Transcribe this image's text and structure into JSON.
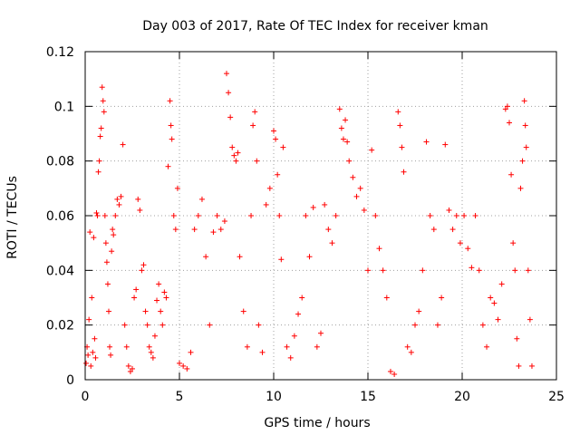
{
  "chart_data": {
    "type": "scatter",
    "title": "Day 003 of 2017, Rate Of TEC Index for receiver kman",
    "xlabel": "GPS time / hours",
    "ylabel": "ROTI / TECUs",
    "xlim": [
      0,
      25
    ],
    "ylim": [
      0,
      0.12
    ],
    "x_ticks": [
      "0",
      "5",
      "10",
      "15",
      "20",
      "25"
    ],
    "y_ticks": [
      "0",
      "0.02",
      "0.04",
      "0.06",
      "0.08",
      "0.1",
      "0.12"
    ],
    "grid": true,
    "marker": "plus",
    "color": "#ff0000",
    "series": [
      {
        "points": [
          [
            0.05,
            0.006
          ],
          [
            0.1,
            0.012
          ],
          [
            0.15,
            0.009
          ],
          [
            0.2,
            0.022
          ],
          [
            0.25,
            0.054
          ],
          [
            0.3,
            0.005
          ],
          [
            0.35,
            0.03
          ],
          [
            0.4,
            0.01
          ],
          [
            0.45,
            0.052
          ],
          [
            0.5,
            0.015
          ],
          [
            0.55,
            0.008
          ],
          [
            0.6,
            0.061
          ],
          [
            0.65,
            0.06
          ],
          [
            0.7,
            0.076
          ],
          [
            0.75,
            0.08
          ],
          [
            0.8,
            0.089
          ],
          [
            0.85,
            0.092
          ],
          [
            0.9,
            0.107
          ],
          [
            0.95,
            0.102
          ],
          [
            1.0,
            0.098
          ],
          [
            1.05,
            0.06
          ],
          [
            1.1,
            0.05
          ],
          [
            1.15,
            0.043
          ],
          [
            1.2,
            0.035
          ],
          [
            1.25,
            0.025
          ],
          [
            1.3,
            0.012
          ],
          [
            1.35,
            0.009
          ],
          [
            1.4,
            0.047
          ],
          [
            1.45,
            0.055
          ],
          [
            1.5,
            0.053
          ],
          [
            1.6,
            0.06
          ],
          [
            1.7,
            0.066
          ],
          [
            1.8,
            0.064
          ],
          [
            1.9,
            0.067
          ],
          [
            2.0,
            0.086
          ],
          [
            2.1,
            0.02
          ],
          [
            2.2,
            0.012
          ],
          [
            2.3,
            0.005
          ],
          [
            2.4,
            0.003
          ],
          [
            2.5,
            0.004
          ],
          [
            2.6,
            0.03
          ],
          [
            2.7,
            0.033
          ],
          [
            2.8,
            0.066
          ],
          [
            2.9,
            0.062
          ],
          [
            3.0,
            0.04
          ],
          [
            3.1,
            0.042
          ],
          [
            3.2,
            0.025
          ],
          [
            3.3,
            0.02
          ],
          [
            3.4,
            0.012
          ],
          [
            3.5,
            0.01
          ],
          [
            3.6,
            0.008
          ],
          [
            3.7,
            0.016
          ],
          [
            3.8,
            0.029
          ],
          [
            3.9,
            0.035
          ],
          [
            4.0,
            0.025
          ],
          [
            4.1,
            0.02
          ],
          [
            4.2,
            0.032
          ],
          [
            4.3,
            0.03
          ],
          [
            4.4,
            0.078
          ],
          [
            4.5,
            0.102
          ],
          [
            4.55,
            0.093
          ],
          [
            4.6,
            0.088
          ],
          [
            4.7,
            0.06
          ],
          [
            4.8,
            0.055
          ],
          [
            4.9,
            0.07
          ],
          [
            5.0,
            0.006
          ],
          [
            5.2,
            0.005
          ],
          [
            5.4,
            0.004
          ],
          [
            5.6,
            0.01
          ],
          [
            5.8,
            0.055
          ],
          [
            6.0,
            0.06
          ],
          [
            6.2,
            0.066
          ],
          [
            6.4,
            0.045
          ],
          [
            6.6,
            0.02
          ],
          [
            6.8,
            0.054
          ],
          [
            7.0,
            0.06
          ],
          [
            7.2,
            0.055
          ],
          [
            7.4,
            0.058
          ],
          [
            7.5,
            0.112
          ],
          [
            7.6,
            0.105
          ],
          [
            7.7,
            0.096
          ],
          [
            7.8,
            0.085
          ],
          [
            7.9,
            0.082
          ],
          [
            8.0,
            0.08
          ],
          [
            8.1,
            0.083
          ],
          [
            8.2,
            0.045
          ],
          [
            8.4,
            0.025
          ],
          [
            8.6,
            0.012
          ],
          [
            8.8,
            0.06
          ],
          [
            8.9,
            0.093
          ],
          [
            9.0,
            0.098
          ],
          [
            9.1,
            0.08
          ],
          [
            9.2,
            0.02
          ],
          [
            9.4,
            0.01
          ],
          [
            9.6,
            0.064
          ],
          [
            9.8,
            0.07
          ],
          [
            10.0,
            0.091
          ],
          [
            10.1,
            0.088
          ],
          [
            10.2,
            0.075
          ],
          [
            10.3,
            0.06
          ],
          [
            10.4,
            0.044
          ],
          [
            10.5,
            0.085
          ],
          [
            10.7,
            0.012
          ],
          [
            10.9,
            0.008
          ],
          [
            11.1,
            0.016
          ],
          [
            11.3,
            0.024
          ],
          [
            11.5,
            0.03
          ],
          [
            11.7,
            0.06
          ],
          [
            11.9,
            0.045
          ],
          [
            12.1,
            0.063
          ],
          [
            12.3,
            0.012
          ],
          [
            12.5,
            0.017
          ],
          [
            12.7,
            0.064
          ],
          [
            12.9,
            0.055
          ],
          [
            13.1,
            0.05
          ],
          [
            13.3,
            0.06
          ],
          [
            13.5,
            0.099
          ],
          [
            13.6,
            0.092
          ],
          [
            13.7,
            0.088
          ],
          [
            13.8,
            0.095
          ],
          [
            13.9,
            0.087
          ],
          [
            14.0,
            0.08
          ],
          [
            14.2,
            0.074
          ],
          [
            14.4,
            0.067
          ],
          [
            14.6,
            0.07
          ],
          [
            14.8,
            0.062
          ],
          [
            15.0,
            0.04
          ],
          [
            15.2,
            0.084
          ],
          [
            15.4,
            0.06
          ],
          [
            15.6,
            0.048
          ],
          [
            15.8,
            0.04
          ],
          [
            16.0,
            0.03
          ],
          [
            16.2,
            0.003
          ],
          [
            16.4,
            0.002
          ],
          [
            16.6,
            0.098
          ],
          [
            16.7,
            0.093
          ],
          [
            16.8,
            0.085
          ],
          [
            16.9,
            0.076
          ],
          [
            17.1,
            0.012
          ],
          [
            17.3,
            0.01
          ],
          [
            17.5,
            0.02
          ],
          [
            17.7,
            0.025
          ],
          [
            17.9,
            0.04
          ],
          [
            18.1,
            0.087
          ],
          [
            18.3,
            0.06
          ],
          [
            18.5,
            0.055
          ],
          [
            18.7,
            0.02
          ],
          [
            18.9,
            0.03
          ],
          [
            19.1,
            0.086
          ],
          [
            19.3,
            0.062
          ],
          [
            19.5,
            0.055
          ],
          [
            19.7,
            0.06
          ],
          [
            19.9,
            0.05
          ],
          [
            20.1,
            0.06
          ],
          [
            20.3,
            0.048
          ],
          [
            20.5,
            0.041
          ],
          [
            20.7,
            0.06
          ],
          [
            20.9,
            0.04
          ],
          [
            21.1,
            0.02
          ],
          [
            21.3,
            0.012
          ],
          [
            21.5,
            0.03
          ],
          [
            21.7,
            0.028
          ],
          [
            21.9,
            0.022
          ],
          [
            22.1,
            0.035
          ],
          [
            22.3,
            0.099
          ],
          [
            22.4,
            0.1
          ],
          [
            22.5,
            0.094
          ],
          [
            22.6,
            0.075
          ],
          [
            22.7,
            0.05
          ],
          [
            22.8,
            0.04
          ],
          [
            22.9,
            0.015
          ],
          [
            23.0,
            0.005
          ],
          [
            23.1,
            0.07
          ],
          [
            23.2,
            0.08
          ],
          [
            23.3,
            0.102
          ],
          [
            23.35,
            0.093
          ],
          [
            23.4,
            0.085
          ],
          [
            23.5,
            0.04
          ],
          [
            23.6,
            0.022
          ],
          [
            23.7,
            0.005
          ]
        ]
      }
    ]
  }
}
